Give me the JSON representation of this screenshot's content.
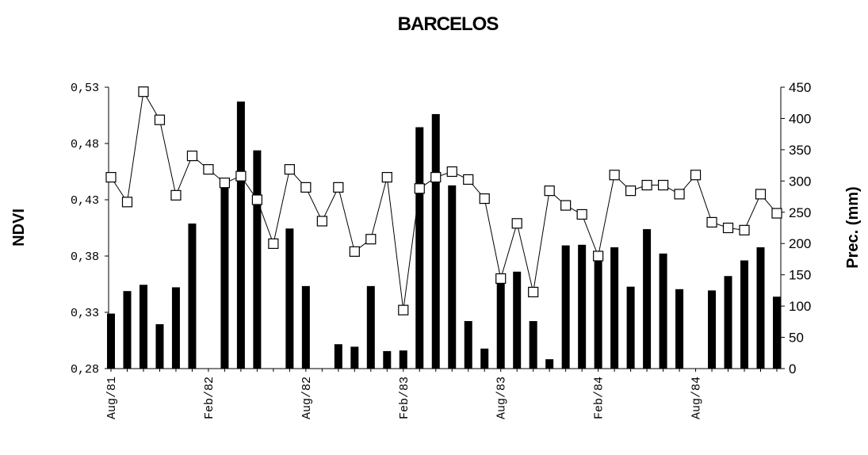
{
  "chart_data": {
    "type": "bar_line",
    "title": "BARCELOS",
    "categories": [
      "Aug/81",
      null,
      null,
      null,
      null,
      null,
      "Feb/82",
      null,
      null,
      null,
      null,
      null,
      "Aug/82",
      null,
      null,
      null,
      null,
      null,
      "Feb/83",
      null,
      null,
      null,
      null,
      null,
      "Aug/83",
      null,
      null,
      null,
      null,
      null,
      "Feb/84",
      null,
      null,
      null,
      null,
      null,
      "Aug/84",
      null,
      null,
      null,
      null,
      null
    ],
    "y_label": "NDVI",
    "y2_label": "Prec. (mm)",
    "ylim": [
      0.28,
      0.53
    ],
    "yticks": [
      {
        "value": 0.28,
        "label": "0,28"
      },
      {
        "value": 0.33,
        "label": "0,33"
      },
      {
        "value": 0.38,
        "label": "0,38"
      },
      {
        "value": 0.43,
        "label": "0,43"
      },
      {
        "value": 0.48,
        "label": "0,48"
      },
      {
        "value": 0.53,
        "label": "0,53"
      }
    ],
    "y2lim": [
      0,
      450
    ],
    "y2ticks": [
      0,
      50,
      100,
      150,
      200,
      250,
      300,
      350,
      400,
      450
    ],
    "series": [
      {
        "type": "bar",
        "axis": "y2",
        "color": "#000000",
        "values": [
          88,
          124,
          134,
          71,
          130,
          232,
          0,
          293,
          427,
          349,
          0,
          224,
          132,
          0,
          39,
          35,
          132,
          28,
          29,
          386,
          407,
          293,
          76,
          32,
          136,
          155,
          76,
          15,
          197,
          198,
          188,
          194,
          131,
          223,
          184,
          127,
          0,
          125,
          148,
          173,
          194,
          115
        ]
      },
      {
        "type": "line",
        "axis": "y",
        "color": "#000000",
        "values": [
          0.45,
          0.428,
          0.526,
          0.501,
          0.434,
          0.469,
          0.457,
          0.445,
          0.451,
          0.43,
          0.391,
          0.457,
          0.441,
          0.411,
          0.441,
          0.384,
          0.395,
          0.45,
          0.332,
          0.44,
          0.45,
          0.455,
          0.448,
          0.431,
          0.36,
          0.409,
          0.348,
          0.438,
          0.425,
          0.417,
          0.38,
          0.452,
          0.438,
          0.443,
          0.443,
          0.435,
          0.452,
          0.41,
          0.405,
          0.403,
          0.435,
          0.418
        ]
      }
    ]
  }
}
